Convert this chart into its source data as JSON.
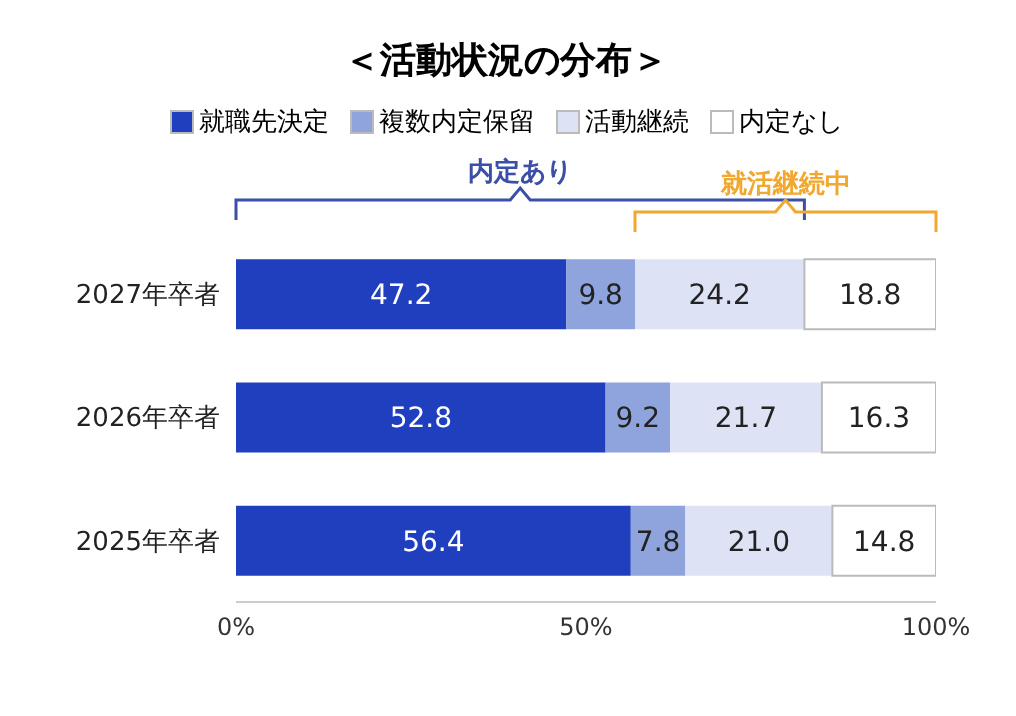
{
  "chart_data": {
    "type": "bar",
    "title": "＜活動状況の分布＞",
    "orientation": "horizontal",
    "stacked": true,
    "categories": [
      "2027年卒者",
      "2026年卒者",
      "2025年卒者"
    ],
    "series": [
      {
        "name": "就職先決定",
        "color": "#1f3fbf",
        "values": [
          47.2,
          52.8,
          56.4
        ],
        "value_labels": [
          "47.2",
          "52.8",
          "56.4"
        ]
      },
      {
        "name": "複数内定保留",
        "color": "#8fa3dc",
        "values": [
          9.8,
          9.2,
          7.8
        ],
        "value_labels": [
          "9.8",
          "9.2",
          "7.8"
        ]
      },
      {
        "name": "活動継続",
        "color": "#dde3f5",
        "values": [
          24.2,
          21.7,
          21.0
        ],
        "value_labels": [
          "24.2",
          "21.7",
          "21.0"
        ]
      },
      {
        "name": "内定なし",
        "color": "#ffffff",
        "values": [
          18.8,
          16.3,
          14.8
        ],
        "value_labels": [
          "18.8",
          "16.3",
          "14.8"
        ]
      }
    ],
    "xlim": [
      0,
      100
    ],
    "xticks": [
      {
        "value": 0,
        "label": "0%"
      },
      {
        "value": 50,
        "label": "50%"
      },
      {
        "value": 100,
        "label": "100%"
      }
    ],
    "legend": "top",
    "grid": false,
    "annotations": [
      "内定あり",
      "就活継続中"
    ]
  }
}
